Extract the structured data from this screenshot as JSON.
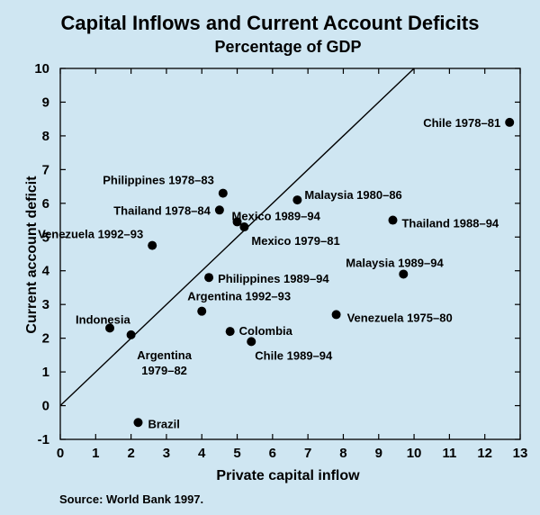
{
  "title": "Capital Inflows and Current Account Deficits",
  "subtitle": "Percentage of GDP",
  "source": "Source: World Bank 1997.",
  "chart_data": {
    "type": "scatter",
    "xlabel": "Private capital inflow",
    "ylabel": "Current account deficit",
    "xlim": [
      0,
      13
    ],
    "ylim": [
      -1,
      10
    ],
    "xticks": [
      0,
      1,
      2,
      3,
      4,
      5,
      6,
      7,
      8,
      9,
      10,
      11,
      12,
      13
    ],
    "yticks": [
      -1,
      0,
      1,
      2,
      3,
      4,
      5,
      6,
      7,
      8,
      9,
      10
    ],
    "grid": false,
    "point_color": "#000000",
    "reference_line": {
      "type": "45-degree",
      "from": [
        0,
        0
      ],
      "to": [
        10,
        10
      ]
    },
    "points": [
      {
        "label": "Chile 1978–81",
        "x": 12.7,
        "y": 8.4
      },
      {
        "label": "Philippines 1978–83",
        "x": 4.6,
        "y": 6.3
      },
      {
        "label": "Malaysia 1980–86",
        "x": 6.7,
        "y": 6.1
      },
      {
        "label": "Thailand 1978–84",
        "x": 4.5,
        "y": 5.8
      },
      {
        "label": "Mexico 1989–94",
        "x": 5.0,
        "y": 5.45
      },
      {
        "label": "Mexico 1979–81",
        "x": 5.2,
        "y": 5.3
      },
      {
        "label": "Thailand 1988–94",
        "x": 9.4,
        "y": 5.5
      },
      {
        "label": "Venezuela 1992–93",
        "x": 2.6,
        "y": 4.75
      },
      {
        "label": "Malaysia 1989–94",
        "x": 9.7,
        "y": 3.9
      },
      {
        "label": "Philippines 1989–94",
        "x": 4.2,
        "y": 3.8
      },
      {
        "label": "Argentina 1992–93",
        "x": 4.0,
        "y": 2.8
      },
      {
        "label": "Venezuela 1975–80",
        "x": 7.8,
        "y": 2.7
      },
      {
        "label": "Indonesia",
        "x": 1.4,
        "y": 2.3
      },
      {
        "label": "Argentina 1979–82",
        "x": 2.0,
        "y": 2.1
      },
      {
        "label": "Colombia",
        "x": 4.8,
        "y": 2.2
      },
      {
        "label": "Chile 1989–94",
        "x": 5.4,
        "y": 1.9
      },
      {
        "label": "Brazil",
        "x": 2.2,
        "y": -0.5
      }
    ]
  }
}
